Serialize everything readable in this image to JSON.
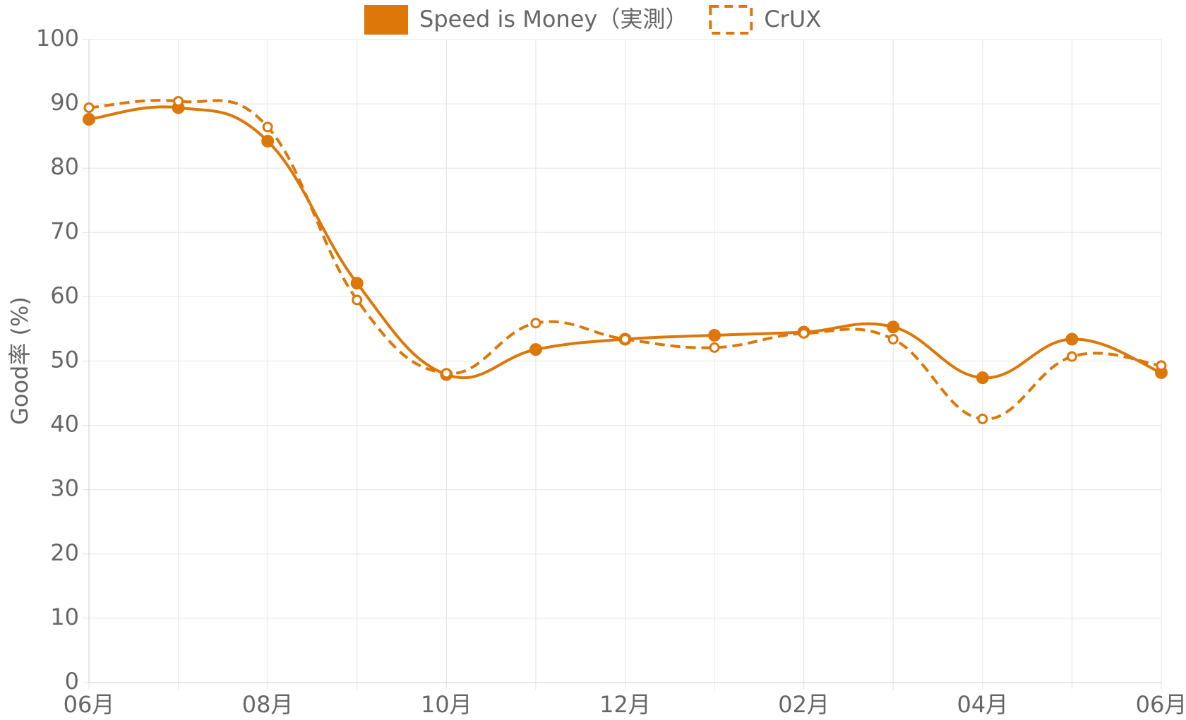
{
  "chart_data": {
    "type": "line",
    "y_label": "Good率 (%)",
    "categories": [
      "06月",
      null,
      "08月",
      null,
      "10月",
      null,
      "12月",
      null,
      "02月",
      null,
      "04月",
      null,
      "06月"
    ],
    "series": [
      {
        "name": "Speed is Money（実測）",
        "color": "#dc7708",
        "line_style": "solid",
        "values": [
          87.6,
          89.4,
          84.2,
          62.1,
          47.9,
          51.8,
          53.4,
          54.0,
          54.5,
          55.3,
          47.4,
          53.4,
          48.2
        ]
      },
      {
        "name": "CrUX",
        "color": "#dc7708",
        "line_style": "dashed",
        "values": [
          89.4,
          90.4,
          86.4,
          59.5,
          48.1,
          55.9,
          53.4,
          52.1,
          54.3,
          53.4,
          41.0,
          50.7,
          49.3
        ]
      }
    ],
    "ylim": [
      0,
      100
    ],
    "yticks": [
      0,
      10,
      20,
      30,
      40,
      50,
      60,
      70,
      80,
      90,
      100
    ],
    "grid": true,
    "legend": "top"
  }
}
